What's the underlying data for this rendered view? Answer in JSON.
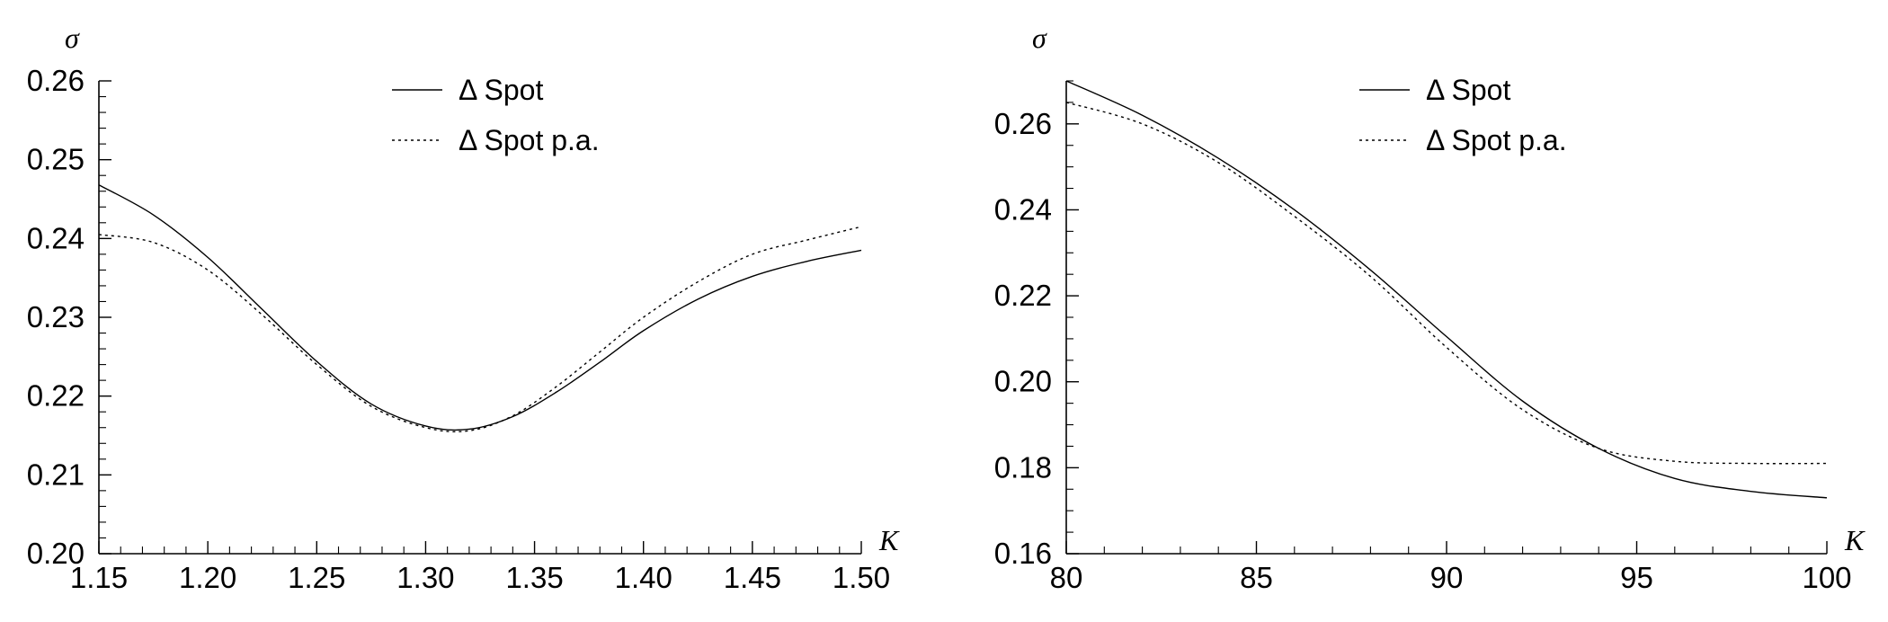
{
  "chart_data": [
    {
      "type": "line",
      "ylabel": "σ",
      "xlabel": "K",
      "xlim": [
        1.15,
        1.5
      ],
      "ylim": [
        0.2,
        0.26
      ],
      "x_ticks": [
        "1.15",
        "1.20",
        "1.25",
        "1.30",
        "1.35",
        "1.40",
        "1.45",
        "1.50"
      ],
      "y_ticks": [
        "0.20",
        "0.21",
        "0.22",
        "0.23",
        "0.24",
        "0.25",
        "0.26"
      ],
      "legend_position": "top-center",
      "grid": false,
      "series": [
        {
          "name": "Δ Spot",
          "style": "solid",
          "x": [
            1.15,
            1.175,
            1.2,
            1.225,
            1.25,
            1.275,
            1.3,
            1.32,
            1.34,
            1.36,
            1.38,
            1.4,
            1.425,
            1.45,
            1.475,
            1.5
          ],
          "y": [
            0.2468,
            0.243,
            0.2376,
            0.231,
            0.2244,
            0.219,
            0.2162,
            0.2158,
            0.2174,
            0.2205,
            0.2243,
            0.2283,
            0.2323,
            0.2352,
            0.2371,
            0.2385
          ]
        },
        {
          "name": "Δ Spot p.a.",
          "style": "dotted",
          "x": [
            1.15,
            1.175,
            1.2,
            1.225,
            1.25,
            1.275,
            1.3,
            1.32,
            1.34,
            1.36,
            1.38,
            1.4,
            1.425,
            1.45,
            1.475,
            1.5
          ],
          "y": [
            0.2405,
            0.2395,
            0.236,
            0.2303,
            0.224,
            0.2187,
            0.216,
            0.2156,
            0.2175,
            0.2212,
            0.2256,
            0.23,
            0.2345,
            0.238,
            0.2398,
            0.2415
          ]
        }
      ]
    },
    {
      "type": "line",
      "ylabel": "σ",
      "xlabel": "K",
      "xlim": [
        80,
        100
      ],
      "ylim": [
        0.16,
        0.27
      ],
      "x_ticks": [
        "80",
        "85",
        "90",
        "95",
        "100"
      ],
      "y_ticks": [
        "0.16",
        "0.18",
        "0.20",
        "0.22",
        "0.24",
        "0.26"
      ],
      "legend_position": "top-center",
      "grid": false,
      "series": [
        {
          "name": "Δ Spot",
          "style": "solid",
          "x": [
            80,
            82,
            84,
            86,
            88,
            90,
            92,
            94,
            96,
            98,
            100
          ],
          "y": [
            0.27,
            0.262,
            0.252,
            0.24,
            0.226,
            0.2105,
            0.1955,
            0.1845,
            0.1775,
            0.1745,
            0.173
          ],
          "y_precise_note": ""
        },
        {
          "name": "Δ Spot p.a.",
          "style": "dotted",
          "x": [
            80,
            82,
            84,
            86,
            88,
            90,
            92,
            94,
            96,
            98,
            100
          ],
          "y": [
            0.265,
            0.26,
            0.251,
            0.2385,
            0.2245,
            0.208,
            0.1935,
            0.1845,
            0.1815,
            0.181,
            0.181
          ]
        }
      ]
    }
  ]
}
